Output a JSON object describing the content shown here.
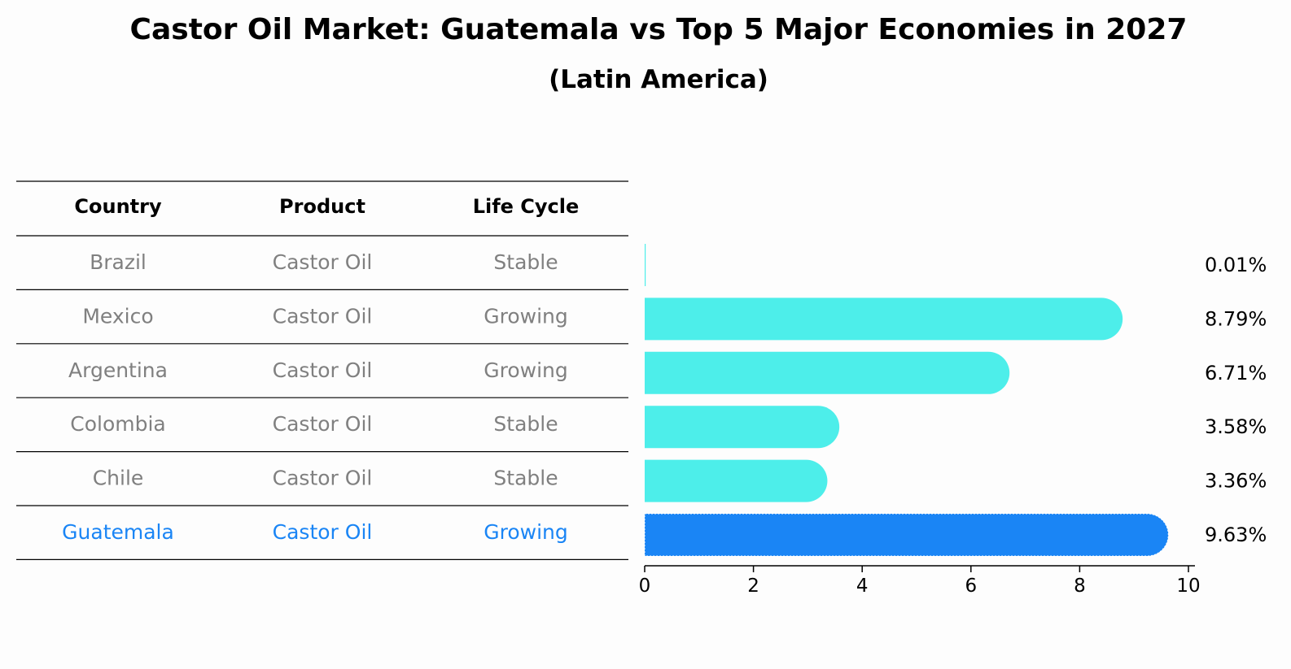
{
  "header": {
    "title": "Castor Oil Market: Guatemala vs Top 5 Major Economies in 2027",
    "subtitle": "(Latin America)"
  },
  "table": {
    "columns": [
      "Country",
      "Product",
      "Life Cycle"
    ],
    "rows": [
      [
        "Brazil",
        "Castor Oil",
        "Stable"
      ],
      [
        "Mexico",
        "Castor Oil",
        "Growing"
      ],
      [
        "Argentina",
        "Castor Oil",
        "Growing"
      ],
      [
        "Colombia",
        "Castor Oil",
        "Stable"
      ],
      [
        "Chile",
        "Castor Oil",
        "Stable"
      ],
      [
        "Guatemala",
        "Castor Oil",
        "Growing"
      ]
    ],
    "highlight_row": 5
  },
  "colors": {
    "bar": "#4deeea",
    "highlight_bar": "#1a85f5",
    "highlight_text": "#1a85f5",
    "muted_text": "#808080"
  },
  "chart_data": {
    "type": "bar",
    "orientation": "horizontal",
    "title": "Castor Oil Market: Guatemala vs Top 5 Major Economies in 2027",
    "subtitle": "(Latin America)",
    "categories": [
      "Brazil",
      "Mexico",
      "Argentina",
      "Colombia",
      "Chile",
      "Guatemala"
    ],
    "values": [
      0.01,
      8.79,
      6.71,
      3.58,
      3.36,
      9.63
    ],
    "value_labels": [
      "0.01%",
      "8.79%",
      "6.71%",
      "3.58%",
      "3.36%",
      "9.63%"
    ],
    "xlim": [
      0,
      10
    ],
    "xticks": [
      0,
      2,
      4,
      6,
      8,
      10
    ],
    "xlabel": "",
    "ylabel": "",
    "grid": false,
    "highlight": "Guatemala"
  }
}
